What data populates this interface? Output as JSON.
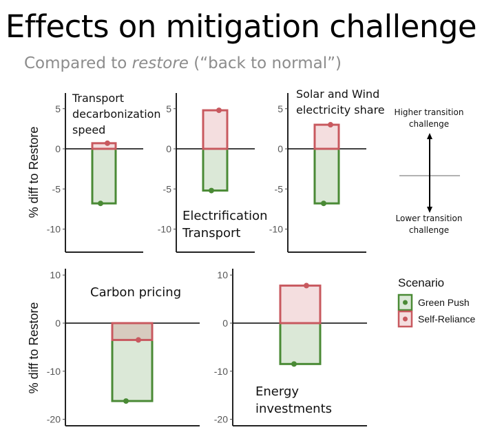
{
  "title": "Effects on mitigation challenge",
  "subtitle": {
    "prefix": "Compared to ",
    "italic": "restore",
    "suffix": " (“back to normal”)"
  },
  "chart_data": [
    {
      "type": "bar",
      "title": "Transport decarbonization speed",
      "title_lines": [
        "Transport",
        "decarbonization",
        "speed"
      ],
      "ylabel": "% diff to Restore",
      "ylim": [
        -12.8,
        6.8
      ],
      "yticks": [
        5,
        0,
        -5,
        -10
      ],
      "series": [
        {
          "name": "Green Push",
          "value": -6.8
        },
        {
          "name": "Self-Reliance",
          "value": 0.7
        }
      ]
    },
    {
      "type": "bar",
      "title": "Electrification Transport",
      "title_lines": [
        "Electrification",
        "Transport"
      ],
      "ylabel": "",
      "ylim": [
        -12.8,
        6.8
      ],
      "yticks": [
        5,
        0,
        -5,
        -10
      ],
      "series": [
        {
          "name": "Green Push",
          "value": -5.2
        },
        {
          "name": "Self-Reliance",
          "value": 4.8
        }
      ]
    },
    {
      "type": "bar",
      "title": "Solar and Wind electricity share",
      "title_lines": [
        "Solar and Wind",
        "electricity share"
      ],
      "ylabel": "",
      "ylim": [
        -12.8,
        6.8
      ],
      "yticks": [
        5,
        0,
        -5,
        -10
      ],
      "series": [
        {
          "name": "Green Push",
          "value": -6.8
        },
        {
          "name": "Self-Reliance",
          "value": 3.0
        }
      ]
    },
    {
      "type": "bar",
      "title": "Carbon pricing",
      "title_lines": [
        "Carbon pricing"
      ],
      "ylabel": "% diff to Restore",
      "ylim": [
        -21.3,
        11.3
      ],
      "yticks": [
        10,
        0,
        -10,
        -20
      ],
      "series": [
        {
          "name": "Green Push",
          "value": -16.2
        },
        {
          "name": "Self-Reliance",
          "value": -3.5
        }
      ]
    },
    {
      "type": "bar",
      "title": "Energy investments",
      "title_lines": [
        "Energy",
        "investments"
      ],
      "ylabel": "",
      "ylim": [
        -21.3,
        11.3
      ],
      "yticks": [
        10,
        0,
        -10,
        -20
      ],
      "series": [
        {
          "name": "Green Push",
          "value": -8.5
        },
        {
          "name": "Self-Reliance",
          "value": 7.8
        }
      ]
    }
  ],
  "legend": {
    "title": "Scenario",
    "placement": "right",
    "items": [
      {
        "name": "Green Push",
        "color": "#4a8a35",
        "fill": "#dce8d6"
      },
      {
        "name": "Self-Reliance",
        "color": "#c8595f",
        "fill": "#f3dfe0"
      }
    ]
  },
  "annotation": {
    "higher": [
      "Higher transition",
      "challenge"
    ],
    "lower": [
      "Lower transition",
      "challenge"
    ]
  }
}
